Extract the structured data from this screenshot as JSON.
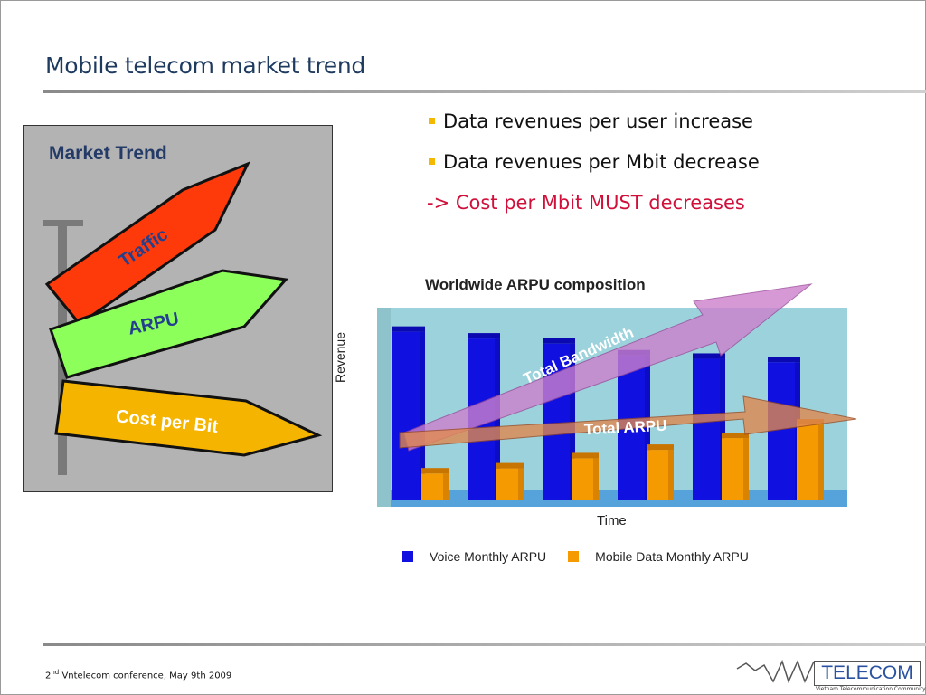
{
  "slide": {
    "title": "Mobile telecom market trend",
    "bullets": [
      "Data revenues per user increase",
      "Data revenues per Mbit decrease"
    ],
    "conclusion": "-> Cost per Mbit MUST decreases"
  },
  "market_trend": {
    "title": "Market Trend",
    "signs": [
      "Traffic",
      "ARPU",
      "Cost per Bit"
    ],
    "colors": {
      "traffic": "#ff3a0a",
      "arpu": "#8cff5a",
      "cost": "#f5b400",
      "panel": "#b3b3b3"
    }
  },
  "chart_data": {
    "type": "bar",
    "title": "Worldwide ARPU composition",
    "xlabel": "Time",
    "ylabel": "Revenue",
    "categories": [
      "",
      "",
      "",
      "",
      "",
      ""
    ],
    "series": [
      {
        "name": "Voice Monthly ARPU",
        "values": [
          100,
          96,
          93,
          86,
          84,
          82
        ],
        "color": "#1010e0"
      },
      {
        "name": "Mobile Data Monthly ARPU",
        "values": [
          16,
          19,
          25,
          30,
          37,
          45
        ],
        "color": "#f59a00"
      }
    ],
    "ylim": [
      0,
      110
    ],
    "annotations": [
      "Total Bandwidth",
      "Total ARPU"
    ],
    "legend": "bottom"
  },
  "footer": {
    "edition": "2",
    "suffix": "nd",
    "text": " Vntelecom conference, May 9th 2009",
    "logo": "TELECOM",
    "logo_sub": "Vietnam Telecommunication Community"
  }
}
